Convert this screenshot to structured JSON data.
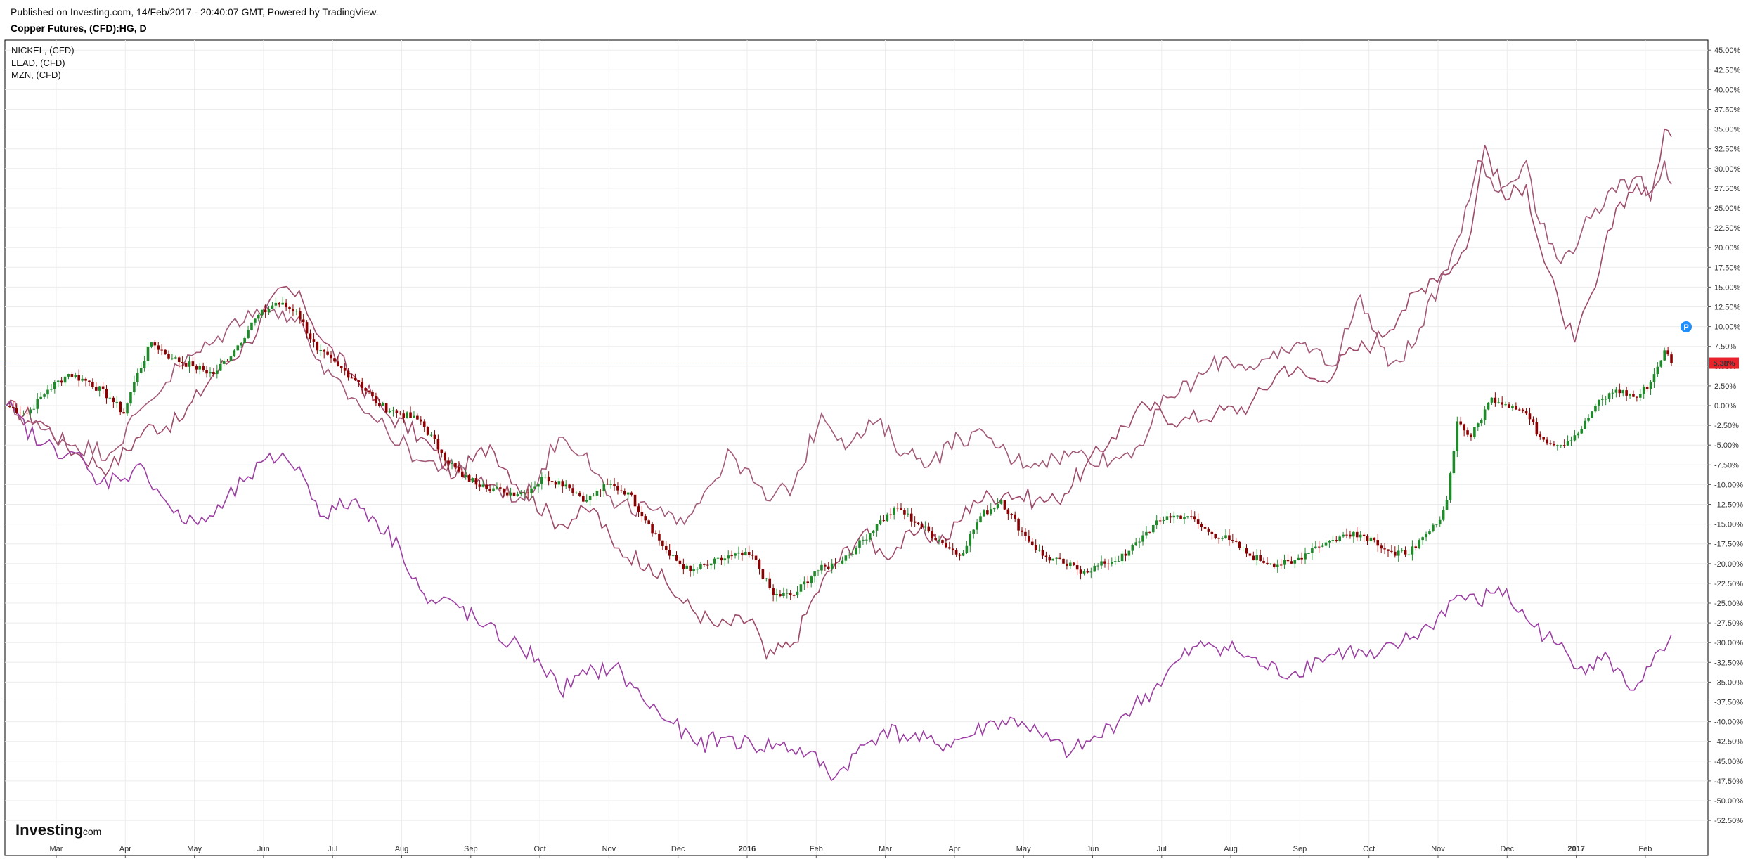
{
  "header": {
    "published": "Published on Investing.com, 14/Feb/2017 - 20:40:07 GMT, Powered by TradingView.",
    "symbol": "Copper Futures, (CFD):HG, D"
  },
  "logo": {
    "brand": "Investing",
    "suffix": ".com"
  },
  "badges": {
    "p_marker": "P"
  },
  "colors": {
    "up": "#1f8a2a",
    "down": "#8b0000",
    "nickel": "#9e4a6a",
    "lead": "#a35a78",
    "mzn": "#9c3fa3",
    "current_line": "#cc0000",
    "price_badge": "#e8222a",
    "p_marker": "#1e90ff"
  },
  "chart_data": {
    "type": "line",
    "title": "Copper Futures, (CFD):HG, D",
    "ylabel": "",
    "ylim": [
      -55,
      46
    ],
    "y_ticks": [
      "45.00%",
      "42.50%",
      "40.00%",
      "37.50%",
      "35.00%",
      "32.50%",
      "30.00%",
      "27.50%",
      "25.00%",
      "22.50%",
      "20.00%",
      "17.50%",
      "15.00%",
      "12.50%",
      "10.00%",
      "7.50%",
      "5.00%",
      "2.50%",
      "0.00%",
      "-2.50%",
      "-5.00%",
      "-7.50%",
      "-10.00%",
      "-12.50%",
      "-15.00%",
      "-17.50%",
      "-20.00%",
      "-22.50%",
      "-25.00%",
      "-27.50%",
      "-30.00%",
      "-32.50%",
      "-35.00%",
      "-37.50%",
      "-40.00%",
      "-42.50%",
      "-45.00%",
      "-47.50%",
      "-50.00%",
      "-52.50%"
    ],
    "x_ticks": [
      {
        "label": "Mar",
        "bold": false
      },
      {
        "label": "Apr",
        "bold": false
      },
      {
        "label": "May",
        "bold": false
      },
      {
        "label": "Jun",
        "bold": false
      },
      {
        "label": "Jul",
        "bold": false
      },
      {
        "label": "Aug",
        "bold": false
      },
      {
        "label": "Sep",
        "bold": false
      },
      {
        "label": "Oct",
        "bold": false
      },
      {
        "label": "Nov",
        "bold": false
      },
      {
        "label": "Dec",
        "bold": false
      },
      {
        "label": "2016",
        "bold": true
      },
      {
        "label": "Feb",
        "bold": false
      },
      {
        "label": "Mar",
        "bold": false
      },
      {
        "label": "Apr",
        "bold": false
      },
      {
        "label": "May",
        "bold": false
      },
      {
        "label": "Jun",
        "bold": false
      },
      {
        "label": "Jul",
        "bold": false
      },
      {
        "label": "Aug",
        "bold": false
      },
      {
        "label": "Sep",
        "bold": false
      },
      {
        "label": "Oct",
        "bold": false
      },
      {
        "label": "Nov",
        "bold": false
      },
      {
        "label": "Dec",
        "bold": false
      },
      {
        "label": "2017",
        "bold": true
      },
      {
        "label": "Feb",
        "bold": false
      }
    ],
    "x_range": [
      0,
      24.4
    ],
    "legend": [
      "NICKEL,  (CFD)",
      "LEAD,  (CFD)",
      "MZN,  (CFD)"
    ],
    "legend_position": "top-left",
    "current_value": 5.38,
    "current_label": "5.38%",
    "grid": true,
    "main_series": {
      "name": "Copper Futures",
      "style": "candlestick",
      "points": [
        [
          0,
          0
        ],
        [
          0.3,
          -1
        ],
        [
          0.6,
          2
        ],
        [
          0.9,
          4
        ],
        [
          1.2,
          3
        ],
        [
          1.5,
          1
        ],
        [
          1.7,
          -1
        ],
        [
          1.85,
          3
        ],
        [
          2.1,
          8
        ],
        [
          2.4,
          6
        ],
        [
          2.7,
          5
        ],
        [
          3.0,
          4
        ],
        [
          3.3,
          7
        ],
        [
          3.6,
          11
        ],
        [
          3.9,
          13
        ],
        [
          4.2,
          12
        ],
        [
          4.5,
          7
        ],
        [
          4.8,
          5
        ],
        [
          5.1,
          3
        ],
        [
          5.4,
          0
        ],
        [
          5.7,
          -1
        ],
        [
          6.0,
          -2
        ],
        [
          6.3,
          -6
        ],
        [
          6.6,
          -9
        ],
        [
          6.9,
          -10
        ],
        [
          7.2,
          -11
        ],
        [
          7.5,
          -11
        ],
        [
          7.8,
          -9
        ],
        [
          8.1,
          -10
        ],
        [
          8.4,
          -12
        ],
        [
          8.7,
          -10
        ],
        [
          9.0,
          -11
        ],
        [
          9.3,
          -15
        ],
        [
          9.6,
          -19
        ],
        [
          9.9,
          -21
        ],
        [
          10.2,
          -20
        ],
        [
          10.5,
          -19
        ],
        [
          10.8,
          -19
        ],
        [
          11.1,
          -24
        ],
        [
          11.4,
          -24
        ],
        [
          11.7,
          -21
        ],
        [
          12.0,
          -20
        ],
        [
          12.3,
          -18
        ],
        [
          12.6,
          -15
        ],
        [
          12.9,
          -13
        ],
        [
          13.2,
          -15
        ],
        [
          13.5,
          -17
        ],
        [
          13.8,
          -19
        ],
        [
          14.1,
          -14
        ],
        [
          14.4,
          -12
        ],
        [
          14.7,
          -16
        ],
        [
          15.0,
          -19
        ],
        [
          15.3,
          -20
        ],
        [
          15.6,
          -21
        ],
        [
          15.9,
          -20
        ],
        [
          16.2,
          -19
        ],
        [
          16.5,
          -16
        ],
        [
          16.8,
          -14
        ],
        [
          17.1,
          -14
        ],
        [
          17.4,
          -16
        ],
        [
          17.7,
          -17
        ],
        [
          18.0,
          -19
        ],
        [
          18.3,
          -20
        ],
        [
          18.6,
          -20
        ],
        [
          18.9,
          -18
        ],
        [
          19.2,
          -17
        ],
        [
          19.5,
          -16
        ],
        [
          19.8,
          -17
        ],
        [
          20.1,
          -19
        ],
        [
          20.4,
          -18
        ],
        [
          20.7,
          -15
        ],
        [
          20.85,
          -12
        ],
        [
          21.0,
          -2
        ],
        [
          21.2,
          -4
        ],
        [
          21.5,
          1
        ],
        [
          21.8,
          0
        ],
        [
          22.0,
          -1
        ],
        [
          22.2,
          -4
        ],
        [
          22.5,
          -5
        ],
        [
          22.8,
          -3
        ],
        [
          23.0,
          0
        ],
        [
          23.3,
          2
        ],
        [
          23.6,
          1
        ],
        [
          23.8,
          3
        ],
        [
          24.0,
          7
        ],
        [
          24.1,
          5.4
        ]
      ]
    },
    "comparison_series": [
      {
        "name": "NICKEL,  (CFD)",
        "points": [
          [
            0,
            0
          ],
          [
            0.5,
            -2
          ],
          [
            1.0,
            -6
          ],
          [
            1.5,
            -8
          ],
          [
            2.0,
            -3
          ],
          [
            2.5,
            -2
          ],
          [
            3.0,
            4
          ],
          [
            3.5,
            8
          ],
          [
            4.0,
            15
          ],
          [
            4.3,
            13
          ],
          [
            4.6,
            8
          ],
          [
            5.0,
            4
          ],
          [
            5.5,
            -1
          ],
          [
            6.0,
            -4
          ],
          [
            6.5,
            -9
          ],
          [
            7.0,
            -5
          ],
          [
            7.5,
            -11
          ],
          [
            8.0,
            -15
          ],
          [
            8.5,
            -13
          ],
          [
            8.8,
            -18
          ],
          [
            9.3,
            -20
          ],
          [
            9.8,
            -25
          ],
          [
            10.3,
            -28
          ],
          [
            10.8,
            -27
          ],
          [
            11.0,
            -32
          ],
          [
            11.4,
            -30
          ],
          [
            11.7,
            -24
          ],
          [
            12.0,
            -20
          ],
          [
            12.4,
            -16
          ],
          [
            12.7,
            -19
          ],
          [
            13.2,
            -16
          ],
          [
            13.6,
            -17
          ],
          [
            14.0,
            -12
          ],
          [
            14.5,
            -11
          ],
          [
            14.9,
            -12
          ],
          [
            15.2,
            -12
          ],
          [
            15.6,
            -8
          ],
          [
            16.0,
            -4
          ],
          [
            16.5,
            0
          ],
          [
            17.0,
            -2
          ],
          [
            17.5,
            -1
          ],
          [
            18.0,
            0
          ],
          [
            18.5,
            5
          ],
          [
            19.0,
            3
          ],
          [
            19.5,
            7
          ],
          [
            19.8,
            8
          ],
          [
            20.2,
            12
          ],
          [
            20.6,
            16
          ],
          [
            21.0,
            18
          ],
          [
            21.2,
            22
          ],
          [
            21.4,
            33
          ],
          [
            21.7,
            26
          ],
          [
            22.0,
            28
          ],
          [
            22.2,
            20
          ],
          [
            22.5,
            12
          ],
          [
            22.7,
            8
          ],
          [
            23.0,
            15
          ],
          [
            23.3,
            25
          ],
          [
            23.6,
            28
          ],
          [
            23.8,
            26
          ],
          [
            24.0,
            35
          ],
          [
            24.1,
            34
          ]
        ]
      },
      {
        "name": "LEAD,  (CFD)",
        "points": [
          [
            0,
            0
          ],
          [
            0.5,
            -3
          ],
          [
            1.0,
            -5
          ],
          [
            1.5,
            -6
          ],
          [
            2.0,
            0
          ],
          [
            2.5,
            5
          ],
          [
            3.0,
            8
          ],
          [
            3.5,
            12
          ],
          [
            4.0,
            12
          ],
          [
            4.3,
            10
          ],
          [
            4.6,
            4
          ],
          [
            5.0,
            1
          ],
          [
            5.5,
            -3
          ],
          [
            6.0,
            -7
          ],
          [
            6.5,
            -8
          ],
          [
            7.0,
            -10
          ],
          [
            7.5,
            -12
          ],
          [
            8.0,
            -4
          ],
          [
            8.4,
            -6
          ],
          [
            8.8,
            -13
          ],
          [
            9.3,
            -13
          ],
          [
            9.7,
            -15
          ],
          [
            10.1,
            -11
          ],
          [
            10.5,
            -6
          ],
          [
            11.0,
            -12
          ],
          [
            11.4,
            -10
          ],
          [
            11.8,
            -1
          ],
          [
            12.2,
            -5
          ],
          [
            12.6,
            -2
          ],
          [
            13.0,
            -6
          ],
          [
            13.4,
            -7
          ],
          [
            13.8,
            -4
          ],
          [
            14.2,
            -4
          ],
          [
            14.6,
            -7
          ],
          [
            15.0,
            -7
          ],
          [
            15.5,
            -6
          ],
          [
            16.0,
            -7
          ],
          [
            16.4,
            -5
          ],
          [
            16.8,
            1
          ],
          [
            17.2,
            3
          ],
          [
            17.6,
            6
          ],
          [
            18.0,
            5
          ],
          [
            18.4,
            6
          ],
          [
            18.8,
            8
          ],
          [
            19.2,
            5
          ],
          [
            19.6,
            14
          ],
          [
            20.0,
            5
          ],
          [
            20.4,
            8
          ],
          [
            20.8,
            17
          ],
          [
            21.0,
            21
          ],
          [
            21.3,
            31
          ],
          [
            21.6,
            27
          ],
          [
            22.0,
            31
          ],
          [
            22.2,
            23
          ],
          [
            22.5,
            18
          ],
          [
            22.8,
            22
          ],
          [
            23.0,
            25
          ],
          [
            23.3,
            27
          ],
          [
            23.6,
            29
          ],
          [
            23.8,
            27
          ],
          [
            24.0,
            31
          ],
          [
            24.1,
            28
          ]
        ]
      },
      {
        "name": "MZN,  (CFD)",
        "points": [
          [
            0,
            0
          ],
          [
            0.5,
            -5
          ],
          [
            1.0,
            -6
          ],
          [
            1.3,
            -10
          ],
          [
            1.6,
            -9
          ],
          [
            2.0,
            -8
          ],
          [
            2.3,
            -12
          ],
          [
            2.6,
            -15
          ],
          [
            3.0,
            -14
          ],
          [
            3.5,
            -9
          ],
          [
            4.0,
            -6
          ],
          [
            4.3,
            -9
          ],
          [
            4.6,
            -14
          ],
          [
            5.0,
            -12
          ],
          [
            5.3,
            -14
          ],
          [
            5.7,
            -18
          ],
          [
            6.1,
            -25
          ],
          [
            6.5,
            -25
          ],
          [
            6.9,
            -28
          ],
          [
            7.3,
            -30
          ],
          [
            7.7,
            -32
          ],
          [
            8.0,
            -36
          ],
          [
            8.4,
            -34
          ],
          [
            8.8,
            -33
          ],
          [
            9.2,
            -37
          ],
          [
            9.6,
            -40
          ],
          [
            10.0,
            -43
          ],
          [
            10.4,
            -42
          ],
          [
            10.8,
            -43
          ],
          [
            11.2,
            -43
          ],
          [
            11.6,
            -44
          ],
          [
            12.0,
            -47
          ],
          [
            12.3,
            -44
          ],
          [
            12.7,
            -41
          ],
          [
            13.1,
            -42
          ],
          [
            13.5,
            -43
          ],
          [
            13.9,
            -42
          ],
          [
            14.3,
            -40
          ],
          [
            14.7,
            -40
          ],
          [
            15.0,
            -42
          ],
          [
            15.4,
            -44
          ],
          [
            15.8,
            -42
          ],
          [
            16.2,
            -39
          ],
          [
            16.6,
            -36
          ],
          [
            17.0,
            -32
          ],
          [
            17.4,
            -30
          ],
          [
            17.8,
            -31
          ],
          [
            18.2,
            -33
          ],
          [
            18.6,
            -34
          ],
          [
            19.0,
            -32
          ],
          [
            19.4,
            -31
          ],
          [
            19.8,
            -32
          ],
          [
            20.2,
            -30
          ],
          [
            20.6,
            -28
          ],
          [
            21.0,
            -24
          ],
          [
            21.3,
            -25
          ],
          [
            21.6,
            -23
          ],
          [
            22.0,
            -27
          ],
          [
            22.4,
            -30
          ],
          [
            22.8,
            -33
          ],
          [
            23.2,
            -32
          ],
          [
            23.5,
            -36
          ],
          [
            23.8,
            -33
          ],
          [
            24.0,
            -31
          ],
          [
            24.1,
            -29
          ]
        ]
      }
    ]
  }
}
